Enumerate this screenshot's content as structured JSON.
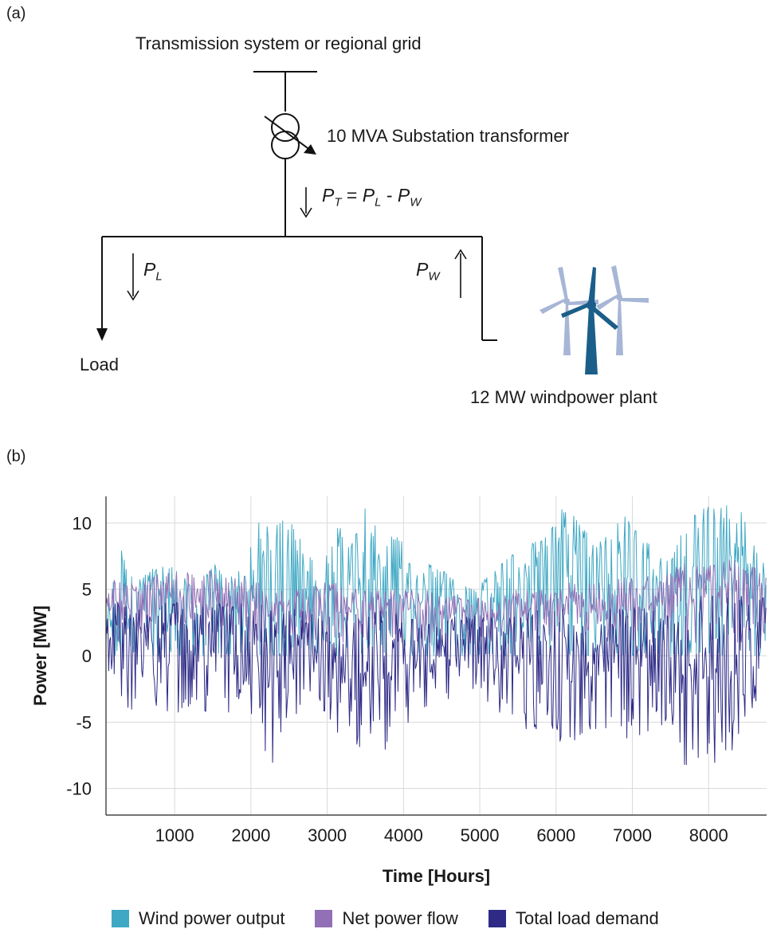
{
  "panel_a": {
    "label": "(a)",
    "grid_label": "Transmission system or regional grid",
    "transformer_label": "10 MVA Substation transformer",
    "flow_equation": {
      "pt": "P",
      "pt_sub": "T",
      "eq": "=",
      "pl": "P",
      "pl_sub": "L",
      "minus": "-",
      "pw": "P",
      "pw_sub": "W"
    },
    "pl_label": {
      "text": "P",
      "sub": "L"
    },
    "pw_label": {
      "text": "P",
      "sub": "W"
    },
    "load_label": "Load",
    "plant_label": "12 MW windpower plant"
  },
  "panel_b": {
    "label": "(b)"
  },
  "colors": {
    "wind": "#3fa8c4",
    "net": "#9170b6",
    "load": "#2e2a86",
    "turbine_front": "#1b5e8a",
    "turbine_back": "#a7b6d6"
  },
  "chart_data": {
    "type": "line",
    "xlabel": "Time [Hours]",
    "ylabel": "Power [MW]",
    "xlim": [
      100,
      8760
    ],
    "ylim": [
      -12,
      12
    ],
    "xticks": [
      1000,
      2000,
      3000,
      4000,
      5000,
      6000,
      7000,
      8000
    ],
    "yticks": [
      10,
      5,
      0,
      -5,
      -10
    ],
    "ytick_labels": [
      "10",
      "5",
      "0",
      "-5",
      "-10"
    ],
    "grid": true,
    "legend_position": "bottom",
    "series": [
      {
        "name": "Wind power output",
        "color_key": "wind",
        "x": [
          100,
          300,
          500,
          700,
          900,
          1100,
          1300,
          1500,
          1700,
          1900,
          2100,
          2300,
          2500,
          2700,
          2900,
          3100,
          3300,
          3500,
          3700,
          3900,
          4100,
          4300,
          4500,
          4700,
          4900,
          5100,
          5300,
          5500,
          5700,
          5900,
          6100,
          6300,
          6500,
          6700,
          6900,
          7100,
          7300,
          7500,
          7700,
          7900,
          8100,
          8300,
          8500,
          8700
        ],
        "max": [
          3,
          8.5,
          5.5,
          6.5,
          7,
          6,
          5,
          7,
          6,
          6.5,
          10,
          9.5,
          11,
          8,
          6.5,
          10.5,
          8,
          11.5,
          9,
          9,
          8,
          7,
          6.5,
          5.5,
          5,
          6,
          7,
          8,
          8.5,
          9,
          11.5,
          10,
          8.5,
          9.5,
          10.5,
          9,
          8,
          7,
          10,
          11.5,
          11,
          11.5,
          10.5,
          7
        ],
        "min": [
          0,
          0,
          0,
          0,
          0,
          0,
          0,
          0,
          0,
          0,
          0,
          0,
          0,
          0,
          0,
          0,
          0,
          0,
          0,
          0,
          0,
          0,
          0,
          0,
          0,
          0,
          0,
          0,
          0,
          0,
          0,
          0,
          0,
          0,
          0,
          0,
          0,
          0,
          0,
          0,
          0,
          0,
          0,
          0
        ]
      },
      {
        "name": "Net power flow",
        "color_key": "net",
        "x": [
          100,
          300,
          500,
          700,
          900,
          1100,
          1300,
          1500,
          1700,
          1900,
          2100,
          2300,
          2500,
          2700,
          2900,
          3100,
          3300,
          3500,
          3700,
          3900,
          4100,
          4300,
          4500,
          4700,
          4900,
          5100,
          5300,
          5500,
          5700,
          5900,
          6100,
          6300,
          6500,
          6700,
          6900,
          7100,
          7300,
          7500,
          7700,
          7900,
          8100,
          8300,
          8500,
          8700
        ],
        "max": [
          6.5,
          6,
          5.5,
          6,
          6.5,
          6.5,
          6,
          6.5,
          6,
          6,
          5.5,
          5,
          5,
          5,
          5.5,
          5.5,
          5,
          5,
          5,
          5,
          5,
          5,
          4.5,
          4.5,
          4.5,
          4.5,
          4.5,
          5,
          5,
          5,
          5.5,
          5.5,
          5.5,
          5.5,
          6,
          6,
          6,
          6.5,
          7,
          7,
          7.5,
          7.5,
          7.5,
          6
        ],
        "min": [
          1.5,
          1,
          1.5,
          1.5,
          1.5,
          1.5,
          1,
          1.5,
          1.5,
          1,
          1,
          1,
          1,
          1,
          1,
          1,
          1,
          1,
          1,
          1,
          1,
          1,
          1,
          1,
          1,
          1,
          1,
          1,
          1,
          1,
          1,
          1,
          1,
          1,
          1,
          1,
          1,
          1,
          1,
          1,
          1,
          1,
          1,
          1.5
        ]
      },
      {
        "name": "Total load demand",
        "color_key": "load",
        "x": [
          100,
          300,
          500,
          700,
          900,
          1100,
          1300,
          1500,
          1700,
          1900,
          2100,
          2300,
          2500,
          2700,
          2900,
          3100,
          3300,
          3500,
          3700,
          3900,
          4100,
          4300,
          4500,
          4700,
          4900,
          5100,
          5300,
          5500,
          5700,
          5900,
          6100,
          6300,
          6500,
          6700,
          6900,
          7100,
          7300,
          7500,
          7700,
          7900,
          8100,
          8300,
          8500,
          8700
        ],
        "max": [
          5,
          4,
          4.5,
          4,
          4,
          4,
          4,
          4.5,
          4,
          4,
          4,
          3.5,
          3.5,
          3.5,
          3.5,
          3.5,
          3.5,
          3.5,
          3.5,
          3.5,
          3,
          3,
          3,
          3,
          3,
          3,
          3,
          3,
          3.5,
          3.5,
          3.5,
          3.5,
          3.5,
          3.5,
          3.5,
          4,
          4,
          4,
          4,
          4.5,
          4.5,
          4.5,
          4.5,
          4.5
        ],
        "min": [
          -1.5,
          -5,
          -5,
          -4.5,
          -5.5,
          -4,
          -4,
          -5,
          -5,
          -3,
          -7,
          -8.5,
          -5,
          -4,
          -3.5,
          -7,
          -6,
          -7.5,
          -8,
          -6,
          -5,
          -4,
          -3.5,
          -3,
          -2.5,
          -3.5,
          -5,
          -5,
          -6,
          -5,
          -7.5,
          -6,
          -5.5,
          -6,
          -7,
          -6,
          -5.5,
          -5,
          -8.5,
          -9,
          -8,
          -8.5,
          -7,
          -1
        ]
      }
    ]
  }
}
